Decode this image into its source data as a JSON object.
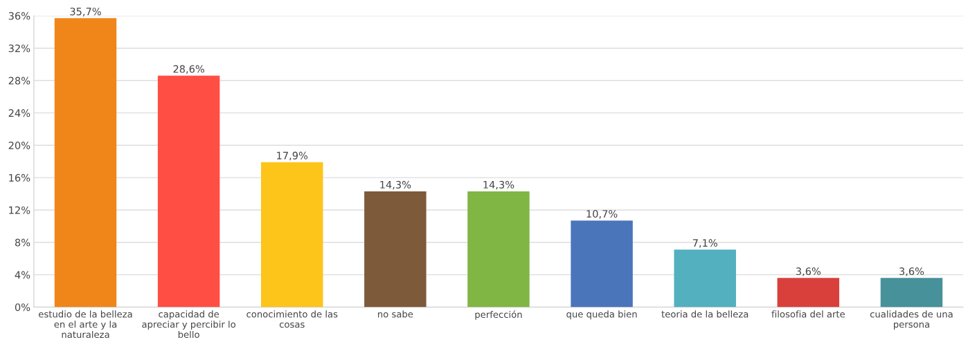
{
  "chart_data": {
    "type": "bar",
    "categories": [
      "estudio de la belleza\nen el arte y la\nnaturaleza",
      "capacidad de\napreciar y percibir lo\nbello",
      "conocimiento de las\ncosas",
      "no sabe",
      "perfección",
      "que queda bien",
      "teoria de la belleza",
      "filosofia del arte",
      "cualidades de una\npersona"
    ],
    "values": [
      35.7,
      28.6,
      17.9,
      14.3,
      14.3,
      10.7,
      7.1,
      3.6,
      3.6
    ],
    "colors": [
      "#f0861a",
      "#ff4f45",
      "#fdc41a",
      "#7d5a3a",
      "#80b644",
      "#4b75bb",
      "#53b0be",
      "#d9403b",
      "#46919a"
    ],
    "value_labels": [
      "35,7%",
      "28,6%",
      "17,9%",
      "14,3%",
      "14,3%",
      "10,7%",
      "7,1%",
      "3,6%",
      "3,6%"
    ],
    "ylim": [
      0,
      36
    ],
    "yticks": [
      {
        "value": 0,
        "label": "0%"
      },
      {
        "value": 4,
        "label": "4%"
      },
      {
        "value": 8,
        "label": "8%"
      },
      {
        "value": 12,
        "label": "12%"
      },
      {
        "value": 16,
        "label": "16%"
      },
      {
        "value": 20,
        "label": "20%"
      },
      {
        "value": 24,
        "label": "24%"
      },
      {
        "value": 28,
        "label": "28%"
      },
      {
        "value": 32,
        "label": "32%"
      },
      {
        "value": 36,
        "label": "36%"
      }
    ],
    "grid": "y"
  }
}
